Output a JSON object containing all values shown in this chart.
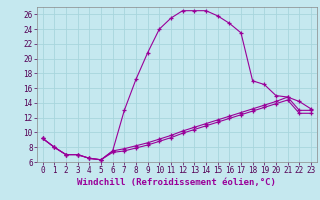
{
  "xlabel": "Windchill (Refroidissement éolien,°C)",
  "bg_color": "#c5e8ef",
  "grid_color": "#a8d5dd",
  "line_color": "#990099",
  "xlim": [
    -0.5,
    23.5
  ],
  "ylim": [
    6,
    27
  ],
  "xticks": [
    0,
    1,
    2,
    3,
    4,
    5,
    6,
    7,
    8,
    9,
    10,
    11,
    12,
    13,
    14,
    15,
    16,
    17,
    18,
    19,
    20,
    21,
    22,
    23
  ],
  "yticks": [
    6,
    8,
    10,
    12,
    14,
    16,
    18,
    20,
    22,
    24,
    26
  ],
  "curve1_x": [
    0,
    1,
    2,
    3,
    4,
    5,
    6,
    7,
    8,
    9,
    10,
    11,
    12,
    13,
    14,
    15,
    16,
    17,
    18,
    19,
    20,
    21,
    22,
    23
  ],
  "curve1_y": [
    9.2,
    8.0,
    7.0,
    7.0,
    6.5,
    6.3,
    7.5,
    13.0,
    17.2,
    20.8,
    24.0,
    25.5,
    26.5,
    26.5,
    26.5,
    25.8,
    24.8,
    23.5,
    17.0,
    16.5,
    15.0,
    14.8,
    14.2,
    13.2
  ],
  "curve2_x": [
    0,
    1,
    2,
    3,
    4,
    5,
    6,
    7,
    8,
    9,
    10,
    11,
    12,
    13,
    14,
    15,
    16,
    17,
    18,
    19,
    20,
    21,
    22,
    23
  ],
  "curve2_y": [
    9.2,
    8.0,
    7.0,
    7.0,
    6.5,
    6.3,
    7.5,
    7.8,
    8.2,
    8.6,
    9.1,
    9.6,
    10.2,
    10.7,
    11.2,
    11.7,
    12.2,
    12.7,
    13.2,
    13.7,
    14.2,
    14.8,
    13.0,
    13.0
  ],
  "curve3_x": [
    0,
    1,
    2,
    3,
    4,
    5,
    6,
    7,
    8,
    9,
    10,
    11,
    12,
    13,
    14,
    15,
    16,
    17,
    18,
    19,
    20,
    21,
    22,
    23
  ],
  "curve3_y": [
    9.2,
    8.0,
    7.0,
    7.0,
    6.5,
    6.3,
    7.3,
    7.5,
    7.9,
    8.3,
    8.8,
    9.3,
    9.9,
    10.4,
    10.9,
    11.4,
    11.9,
    12.4,
    12.9,
    13.4,
    13.9,
    14.4,
    12.6,
    12.6
  ],
  "tick_fontsize": 5.5,
  "xlabel_fontsize": 6.5
}
